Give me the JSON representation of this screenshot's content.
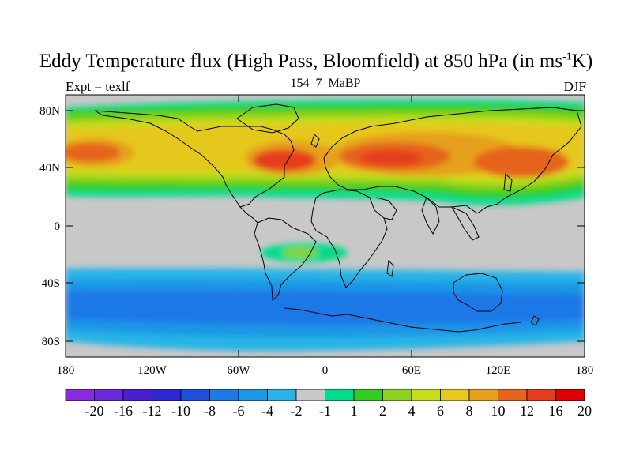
{
  "title": {
    "main": "Eddy Temperature flux (High Pass, Bloomfield) at 850 hPa (in ms",
    "sup": "-1",
    "end": "K)"
  },
  "left_label": "Expt = texlf",
  "center_label": "154_7_MaBP",
  "right_label": "DJF",
  "axes": {
    "x_ticks": [
      "180",
      "120W",
      "60W",
      "0",
      "60E",
      "120E",
      "180"
    ],
    "y_ticks": [
      "80N",
      "40N",
      "0",
      "40S",
      "80S"
    ]
  },
  "colorbar": {
    "colors": [
      "#8a2be2",
      "#6a28dc",
      "#4b1ed2",
      "#2d28d2",
      "#1e50dc",
      "#1e78e6",
      "#1e96e6",
      "#28b4e6",
      "#c8c8c8",
      "#00dc8c",
      "#32cd1e",
      "#8cd21e",
      "#c8dc1e",
      "#e6c81e",
      "#e6a01e",
      "#e6641e",
      "#e63c1e",
      "#dc0000"
    ],
    "labels": [
      "-20",
      "-16",
      "-12",
      "-10",
      "-8",
      "-6",
      "-4",
      "-2",
      "-1",
      "1",
      "2",
      "4",
      "6",
      "8",
      "10",
      "12",
      "16",
      "20"
    ]
  }
}
